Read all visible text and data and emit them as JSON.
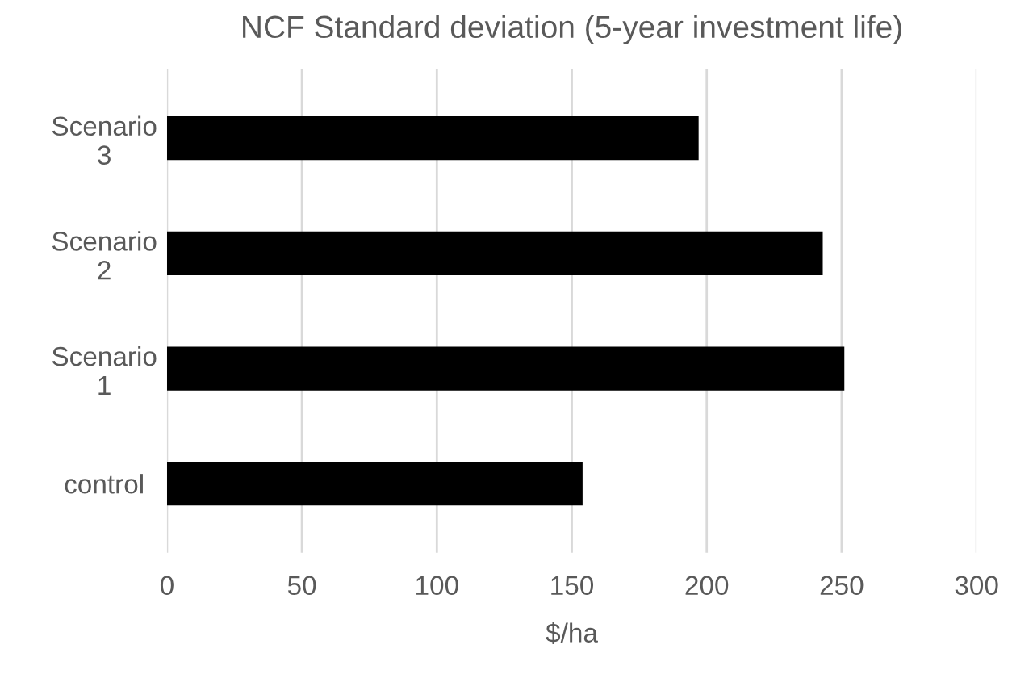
{
  "chart_data": {
    "type": "bar",
    "orientation": "horizontal",
    "title": "NCF Standard deviation (5-year investment life)",
    "xlabel": "$/ha",
    "categories": [
      "Scenario\n3",
      "Scenario\n2",
      "Scenario\n1",
      "control"
    ],
    "values": [
      197,
      243,
      251,
      154
    ],
    "color": "#000000",
    "xlim": [
      0,
      300
    ],
    "xticks": [
      0,
      50,
      100,
      150,
      200,
      250,
      300
    ],
    "grid": "x"
  }
}
